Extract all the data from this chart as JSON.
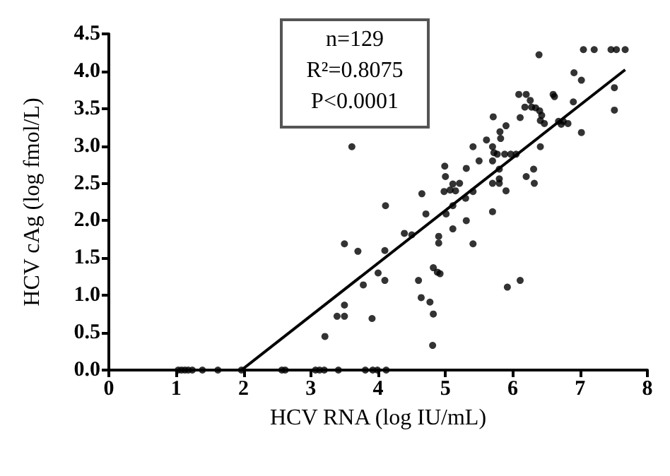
{
  "chart_data": {
    "type": "scatter",
    "xlabel": "HCV RNA (log IU/mL)",
    "ylabel": "HCV cAg (log fmol/L)",
    "annotations": [
      "n=129",
      "R²=0.8075",
      "P<0.0001"
    ],
    "xlim": [
      0,
      8
    ],
    "xticks": [
      0,
      1,
      2,
      3,
      4,
      5,
      6,
      7,
      8
    ],
    "ylim": [
      0,
      4.5
    ],
    "yticks": [
      {
        "value": 0,
        "label": "0.0"
      },
      {
        "value": 0.5,
        "label": "0.5"
      },
      {
        "value": 1,
        "label": "1.0"
      },
      {
        "value": 1.5,
        "label": "1.5"
      },
      {
        "value": 2,
        "label": "2.0"
      },
      {
        "value": 2.5,
        "label": "2.5"
      },
      {
        "value": 3,
        "label": "3.0"
      },
      {
        "value": 3.5,
        "label": "3.5"
      },
      {
        "value": 4,
        "label": "4.0"
      },
      {
        "value": 4.5,
        "label": "4.5"
      }
    ],
    "grid": false,
    "marker": "circle",
    "series": [
      {
        "color": "#000000",
        "x": [
          1.03,
          1.08,
          1.13,
          1.18,
          1.24,
          1.39,
          1.62,
          1.97,
          2.57,
          2.62,
          3.07,
          3.13,
          3.2,
          3.41,
          3.81,
          3.92,
          3.99,
          4.12,
          3.61,
          3.5,
          3.7,
          3.78,
          4.0,
          3.5,
          3.39,
          3.5,
          3.21,
          3.91,
          6.39,
          7.05,
          7.21,
          7.46,
          7.54,
          7.67,
          6.91,
          7.02,
          7.51,
          6.9,
          7.51,
          7.02,
          6.09,
          6.2,
          6.6,
          6.62,
          6.26,
          6.18,
          6.28,
          6.34,
          6.4,
          6.43,
          6.41,
          6.47,
          6.68,
          6.75,
          6.82,
          6.72,
          6.11,
          6.41,
          5.9,
          5.71,
          5.81,
          5.82,
          5.61,
          5.41,
          5.7,
          5.72,
          5.77,
          5.88,
          5.97,
          6.05,
          5.7,
          5.5,
          5.8,
          5.8,
          5.7,
          5.8,
          5.9,
          6.31,
          6.2,
          6.32,
          4.99,
          5.0,
          5.31,
          5.21,
          5.11,
          4.98,
          5.07,
          5.15,
          5.41,
          5.3,
          4.65,
          4.11,
          5.11,
          4.71,
          5.01,
          5.7,
          5.31,
          4.39,
          4.5,
          5.11,
          4.9,
          4.9,
          5.41,
          4.1,
          4.1,
          4.6,
          4.82,
          4.88,
          4.92,
          4.64,
          4.77,
          4.82,
          4.81,
          5.92,
          6.11
        ],
        "values": [
          0,
          0,
          0,
          0,
          0,
          0,
          0,
          0,
          0,
          0,
          0,
          0,
          0,
          0,
          0,
          0,
          0,
          0,
          2.99,
          1.69,
          1.59,
          1.14,
          1.3,
          0.87,
          0.72,
          0.72,
          0.45,
          0.69,
          4.22,
          4.29,
          4.29,
          4.29,
          4.29,
          4.29,
          3.98,
          3.88,
          3.78,
          3.59,
          3.48,
          3.18,
          3.69,
          3.69,
          3.69,
          3.66,
          3.61,
          3.52,
          3.52,
          3.51,
          3.47,
          3.41,
          3.34,
          3.3,
          3.33,
          3.33,
          3.3,
          3.29,
          3.38,
          2.99,
          3.27,
          3.39,
          3.19,
          3.1,
          3.08,
          2.99,
          2.99,
          2.91,
          2.89,
          2.89,
          2.89,
          2.89,
          2.8,
          2.8,
          2.69,
          2.56,
          2.5,
          2.5,
          2.4,
          2.69,
          2.59,
          2.5,
          2.73,
          2.59,
          2.7,
          2.5,
          2.49,
          2.39,
          2.41,
          2.4,
          2.39,
          2.3,
          2.36,
          2.2,
          2.2,
          2.09,
          2.09,
          2.12,
          2.0,
          1.83,
          1.81,
          1.89,
          1.79,
          1.7,
          1.69,
          1.6,
          1.2,
          1.2,
          1.37,
          1.31,
          1.29,
          0.97,
          0.91,
          0.75,
          0.33,
          1.11,
          1.2
        ]
      },
      {
        "type": "line",
        "marker": "none",
        "color": "#000000",
        "x": [
          1.97,
          7.67
        ],
        "values": [
          0,
          4.02
        ]
      }
    ]
  }
}
